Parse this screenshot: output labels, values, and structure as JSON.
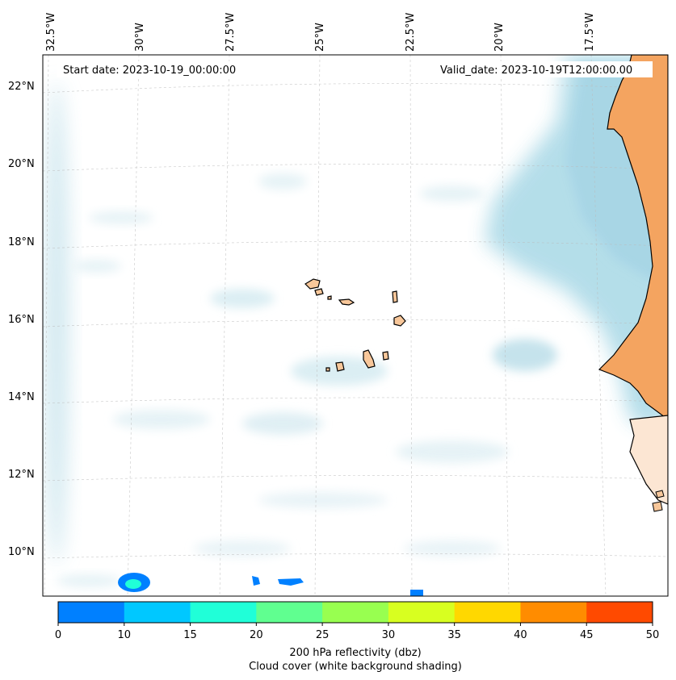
{
  "map": {
    "start_date": "Start date: 2023-10-19_00:00:00",
    "valid_date": "Valid_date: 2023-10-19T12:00:00.00",
    "lon_labels": [
      "32.5°W",
      "30°W",
      "27.5°W",
      "25°W",
      "22.5°W",
      "20°W",
      "17.5°W"
    ],
    "lat_labels": [
      "22°N",
      "20°N",
      "18°N",
      "16°N",
      "14°N",
      "12°N",
      "10°N"
    ]
  },
  "colorbar": {
    "ticks": [
      "0",
      "10",
      "15",
      "20",
      "25",
      "30",
      "35",
      "40",
      "45",
      "50"
    ],
    "colors": [
      "#0080ff",
      "#00c8ff",
      "#20ffd8",
      "#60ff90",
      "#98ff50",
      "#d8ff20",
      "#ffd800",
      "#ff8c00",
      "#ff4a00"
    ],
    "label_line1": "200 hPa reflectivity (dbz)",
    "label_line2": "Cloud cover (white background shading)"
  },
  "colors": {
    "cloud": "#a8d8e6",
    "land_africa": "#f4a460",
    "land_islands": "#f8c79a",
    "reflectivity_low": "#0080ff",
    "reflectivity_mid": "#20ffd8"
  }
}
